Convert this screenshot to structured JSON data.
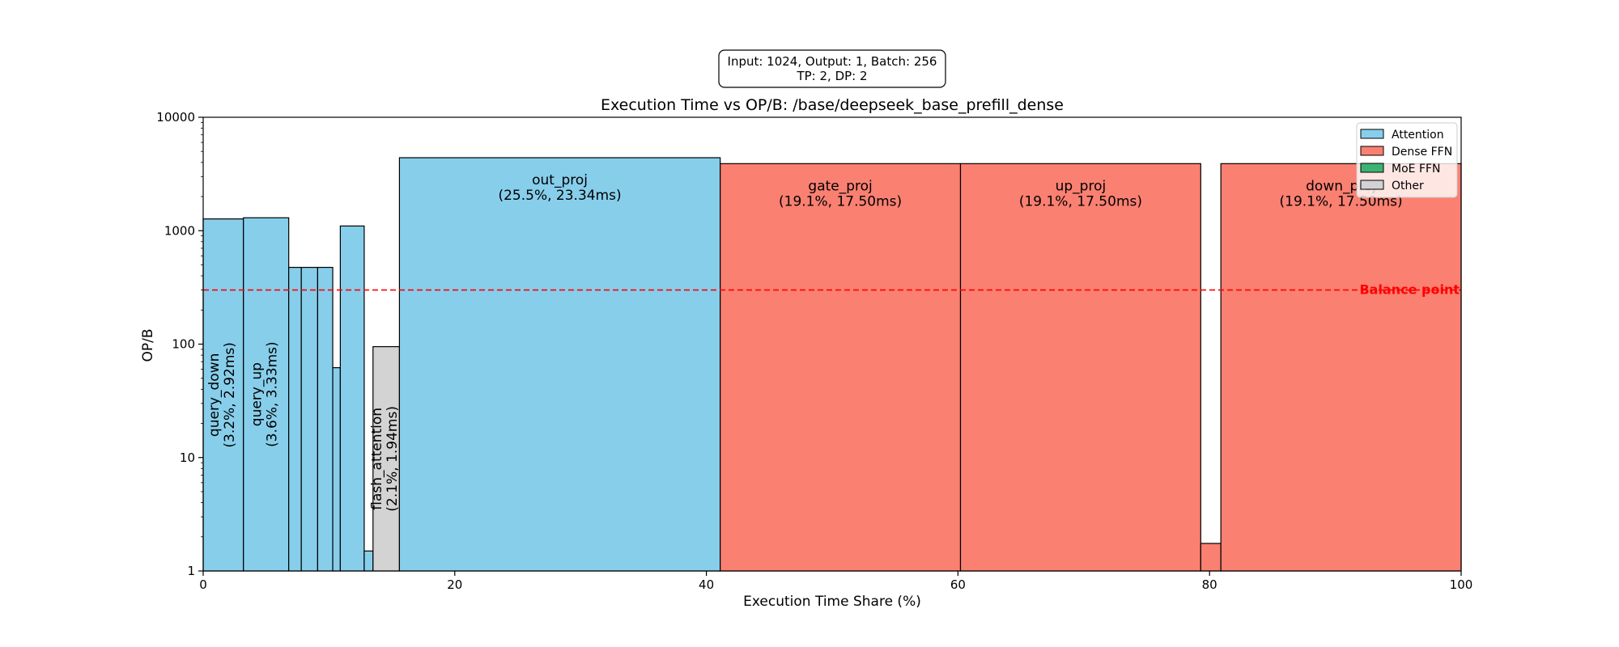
{
  "chart_data": {
    "type": "bar",
    "title": "Execution Time vs OP/B: /base/deepseek_base_prefill_dense",
    "info_box": [
      "Input: 1024, Output: 1, Batch: 256",
      "TP: 2, DP: 2"
    ],
    "xlabel": "Execution Time Share (%)",
    "ylabel": "OP/B",
    "xlim": [
      0,
      100
    ],
    "ylim": [
      1,
      10000
    ],
    "yscale": "log",
    "x_ticks": [
      "0",
      "20",
      "40",
      "60",
      "80",
      "100"
    ],
    "y_ticks": [
      "1",
      "10",
      "100",
      "1000",
      "10000"
    ],
    "grid": false,
    "legend_position": "top-right",
    "balance_line": {
      "value": 300,
      "label": "Balance point",
      "color": "#ff0000"
    },
    "categories_legend": [
      {
        "name": "Attention",
        "color": "#87ceeb"
      },
      {
        "name": "Dense FFN",
        "color": "#fa8072"
      },
      {
        "name": "MoE FFN",
        "color": "#3cb371"
      },
      {
        "name": "Other",
        "color": "#d3d3d3"
      }
    ],
    "bars": [
      {
        "start": 0.0,
        "width": 3.2,
        "value": 1270,
        "category": "Attention",
        "label": "query_down",
        "detail": "(3.2%, 2.92ms)",
        "label_style": "vertical"
      },
      {
        "start": 3.2,
        "width": 3.6,
        "value": 1300,
        "category": "Attention",
        "label": "query_up",
        "detail": "(3.6%, 3.33ms)",
        "label_style": "vertical"
      },
      {
        "start": 6.8,
        "width": 1.0,
        "value": 475,
        "category": "Attention"
      },
      {
        "start": 7.8,
        "width": 1.3,
        "value": 475,
        "category": "Attention"
      },
      {
        "start": 9.1,
        "width": 1.2,
        "value": 475,
        "category": "Attention"
      },
      {
        "start": 10.3,
        "width": 0.6,
        "value": 62,
        "category": "Attention"
      },
      {
        "start": 10.9,
        "width": 1.9,
        "value": 1100,
        "category": "Attention"
      },
      {
        "start": 12.8,
        "width": 0.7,
        "value": 1.5,
        "category": "Attention"
      },
      {
        "start": 13.5,
        "width": 2.1,
        "value": 95,
        "category": "Other",
        "label": "flash_attention",
        "detail": "(2.1%, 1.94ms)",
        "label_style": "vertical"
      },
      {
        "start": 15.6,
        "width": 25.5,
        "value": 4400,
        "category": "Attention",
        "label": "out_proj",
        "detail": "(25.5%, 23.34ms)",
        "label_style": "horizontal"
      },
      {
        "start": 41.1,
        "width": 19.1,
        "value": 3900,
        "category": "Dense FFN",
        "label": "gate_proj",
        "detail": "(19.1%, 17.50ms)",
        "label_style": "horizontal"
      },
      {
        "start": 60.2,
        "width": 19.1,
        "value": 3900,
        "category": "Dense FFN",
        "label": "up_proj",
        "detail": "(19.1%, 17.50ms)",
        "label_style": "horizontal"
      },
      {
        "start": 79.3,
        "width": 1.6,
        "value": 1.75,
        "category": "Dense FFN"
      },
      {
        "start": 80.9,
        "width": 19.1,
        "value": 3900,
        "category": "Dense FFN",
        "label": "down_proj",
        "detail": "(19.1%, 17.50ms)",
        "label_style": "horizontal"
      }
    ]
  }
}
